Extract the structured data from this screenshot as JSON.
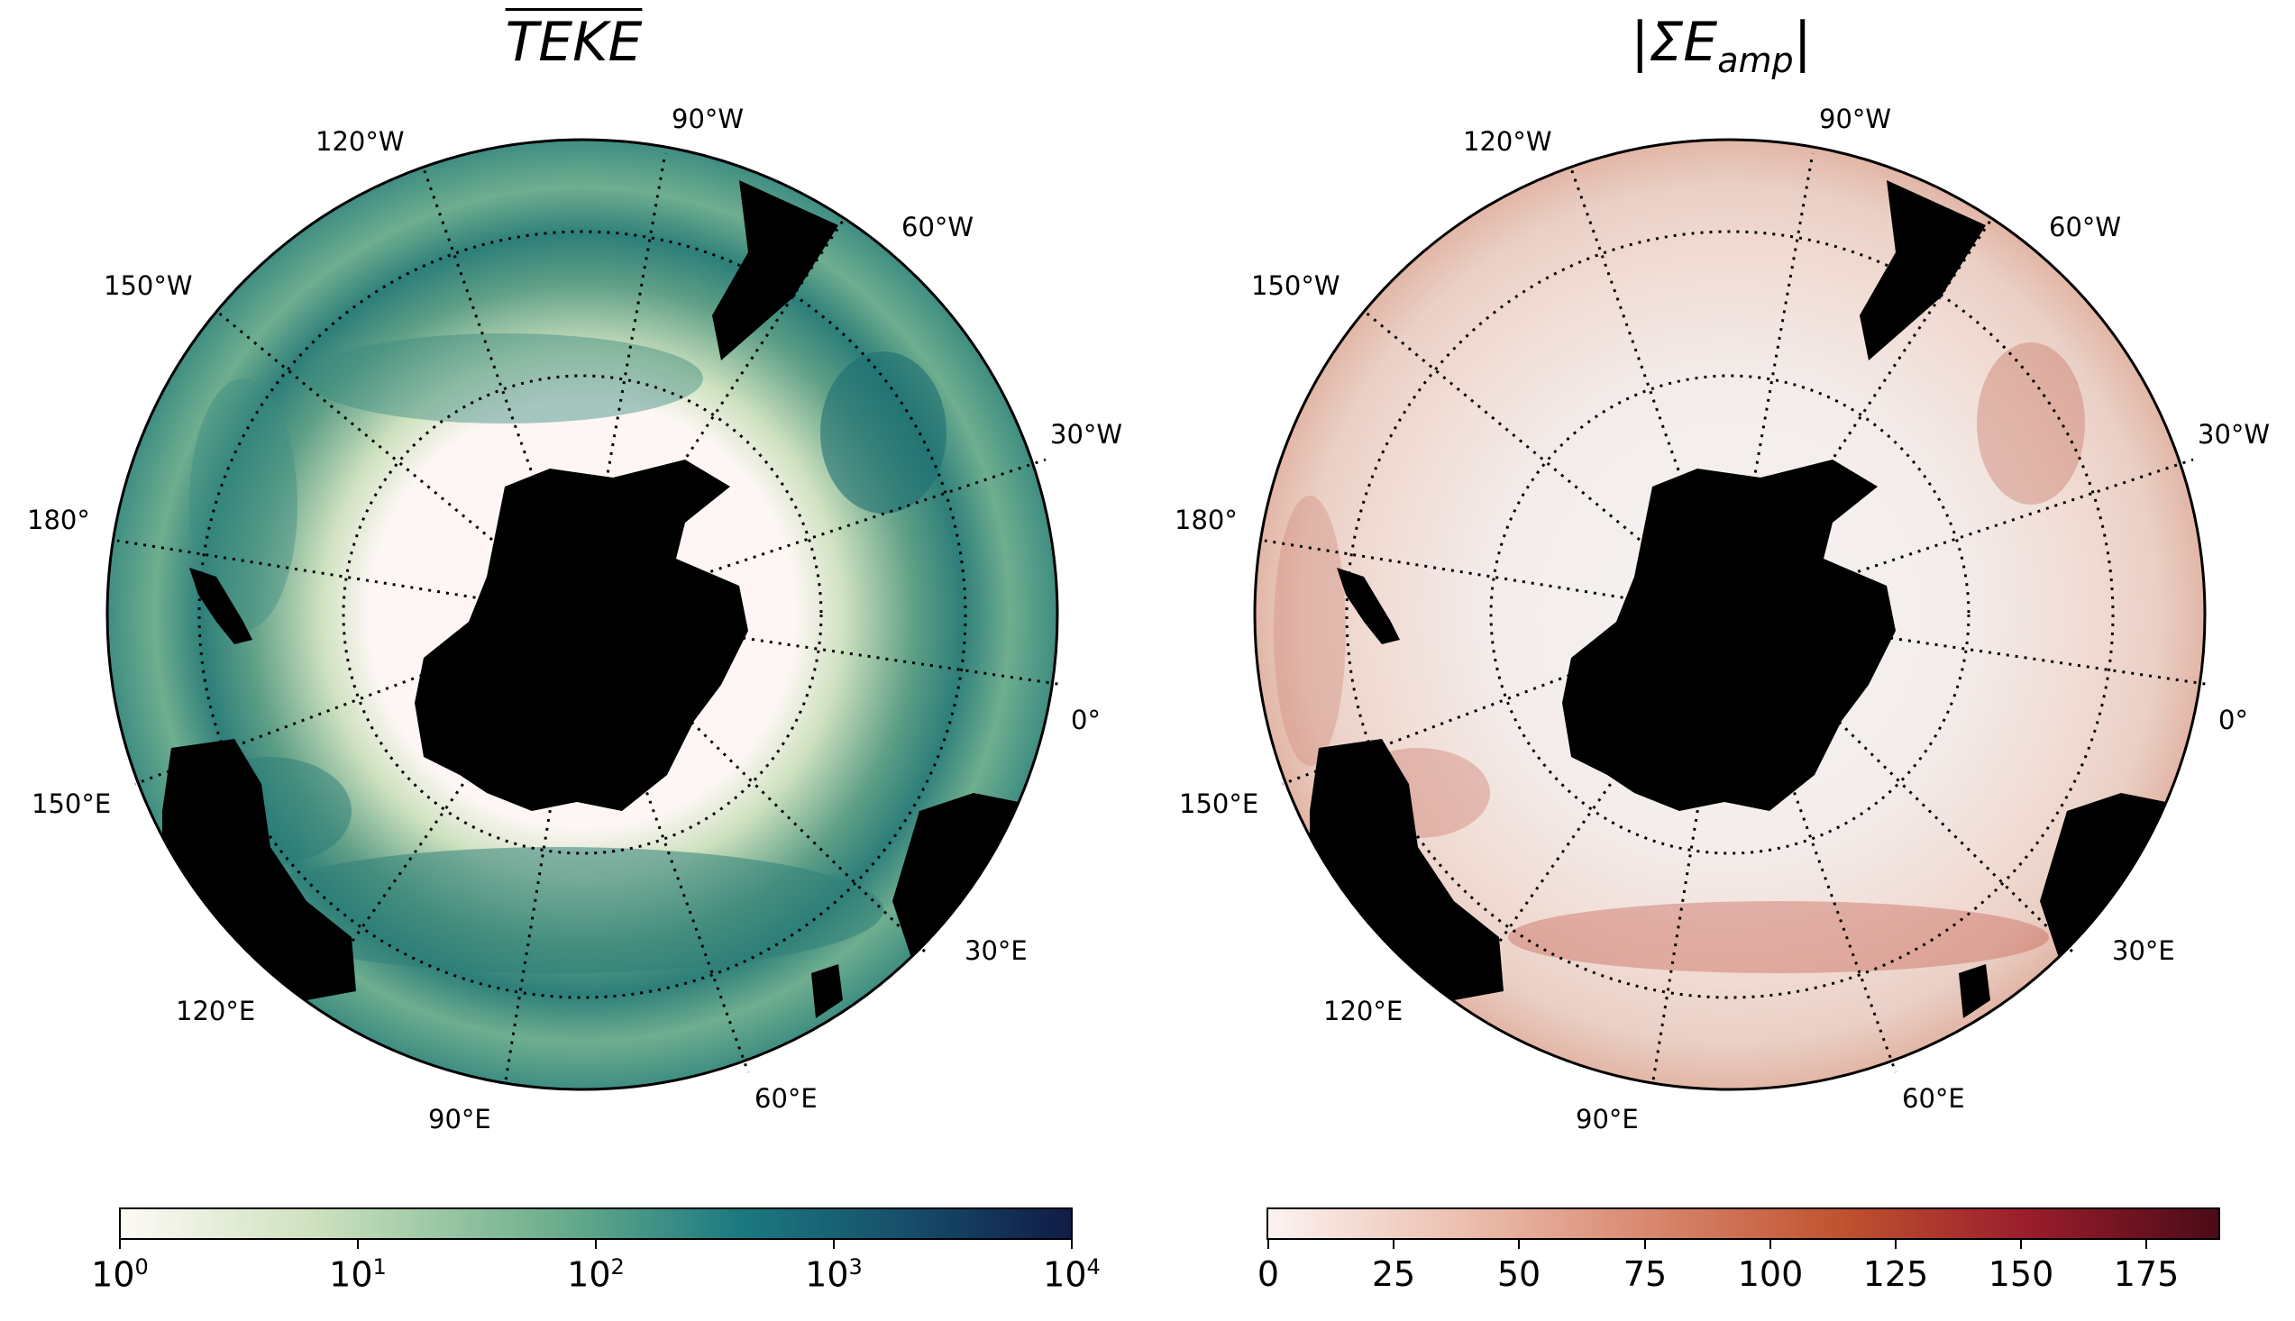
{
  "panels": {
    "left": {
      "title": "TEKE",
      "title_decoration": "overline",
      "colormap": [
        "#fdfaf5",
        "#cfe2c0",
        "#6fb08e",
        "#1b7a80",
        "#16506b",
        "#101c46"
      ],
      "colorbar_scale": "log",
      "colorbar_range": [
        1,
        10000
      ],
      "colorbar_tick_labels": [
        {
          "base": "10",
          "exp": "0"
        },
        {
          "base": "10",
          "exp": "1"
        },
        {
          "base": "10",
          "exp": "2"
        },
        {
          "base": "10",
          "exp": "3"
        },
        {
          "base": "10",
          "exp": "4"
        }
      ]
    },
    "right": {
      "title": "|ΣE",
      "title_sub": "amp",
      "title_end": "|",
      "colormap": [
        "#fbf3f1",
        "#ecc0b0",
        "#d98870",
        "#c0532f",
        "#9a1d2c",
        "#4b0b18"
      ],
      "colorbar_scale": "linear",
      "colorbar_range": [
        0,
        190
      ],
      "colorbar_tick_labels": [
        "0",
        "25",
        "50",
        "75",
        "100",
        "125",
        "150",
        "175"
      ]
    }
  },
  "lon_labels": {
    "w120": "120°W",
    "w90": "90°W",
    "w60": "60°W",
    "w150": "150°W",
    "w30": "30°W",
    "e180": "180°",
    "zero": "0°",
    "e150": "150°E",
    "e30": "30°E",
    "e120": "120°E",
    "e60": "60°E",
    "e90": "90°E"
  },
  "land_color": "#000000",
  "graticule_style": "dotted"
}
